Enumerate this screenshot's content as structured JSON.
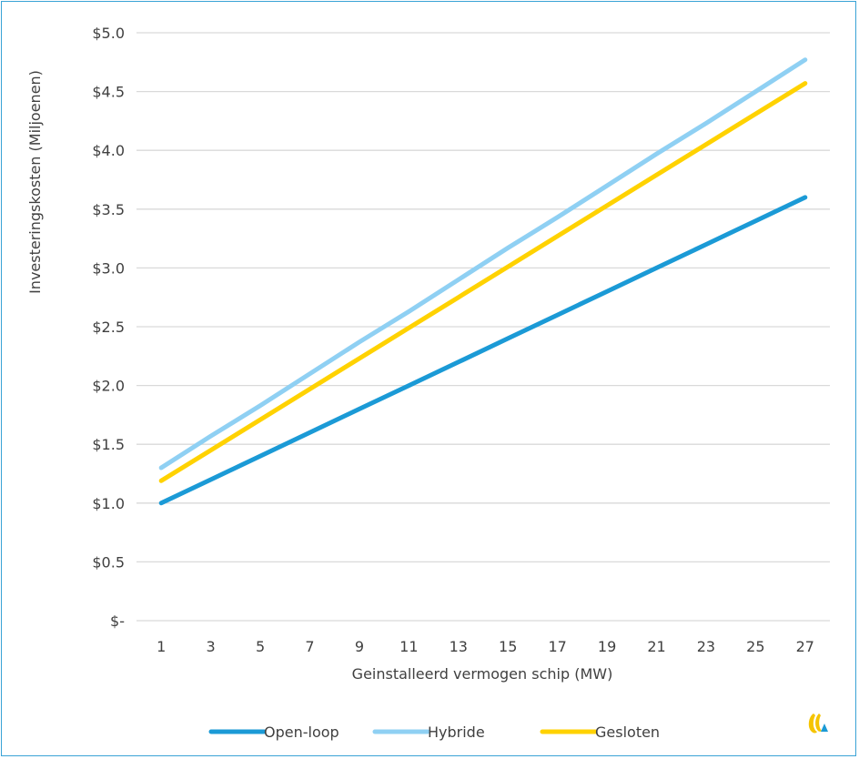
{
  "chart_data": {
    "type": "line",
    "xlabel": "Geinstalleerd vermogen schip (MW)",
    "ylabel": "Investeringskosten (Miljoenen)",
    "x": [
      1,
      3,
      5,
      7,
      9,
      11,
      13,
      15,
      17,
      19,
      21,
      23,
      25,
      27
    ],
    "x_tick_labels": [
      "1",
      "3",
      "5",
      "7",
      "9",
      "11",
      "13",
      "15",
      "17",
      "19",
      "21",
      "23",
      "25",
      "27"
    ],
    "ylim": [
      0,
      5.0
    ],
    "y_ticks": [
      0,
      0.5,
      1.0,
      1.5,
      2.0,
      2.5,
      3.0,
      3.5,
      4.0,
      4.5,
      5.0
    ],
    "y_tick_labels": [
      "$-",
      "$0.5",
      "$1.0",
      "$1.5",
      "$2.0",
      "$2.5",
      "$3.0",
      "$3.5",
      "$4.0",
      "$4.5",
      "$5.0"
    ],
    "grid": "horizontal",
    "legend_position": "bottom",
    "series": [
      {
        "name": "Open-loop",
        "color": "#1b9ad6",
        "values": [
          1.0,
          1.2,
          1.4,
          1.6,
          1.8,
          2.0,
          2.2,
          2.4,
          2.6,
          2.8,
          3.0,
          3.2,
          3.4,
          3.6
        ]
      },
      {
        "name": "Hybride",
        "color": "#8fd0f3",
        "values": [
          1.3,
          1.57,
          1.83,
          2.1,
          2.37,
          2.63,
          2.9,
          3.17,
          3.43,
          3.7,
          3.97,
          4.23,
          4.5,
          4.77
        ]
      },
      {
        "name": "Gesloten",
        "color": "#ffd200",
        "values": [
          1.19,
          1.45,
          1.71,
          1.97,
          2.23,
          2.49,
          2.75,
          3.01,
          3.27,
          3.53,
          3.79,
          4.05,
          4.31,
          4.57
        ]
      }
    ]
  },
  "logo": {
    "name": "brand-logo",
    "colors": [
      "#f5c400",
      "#1b9ad6"
    ]
  }
}
